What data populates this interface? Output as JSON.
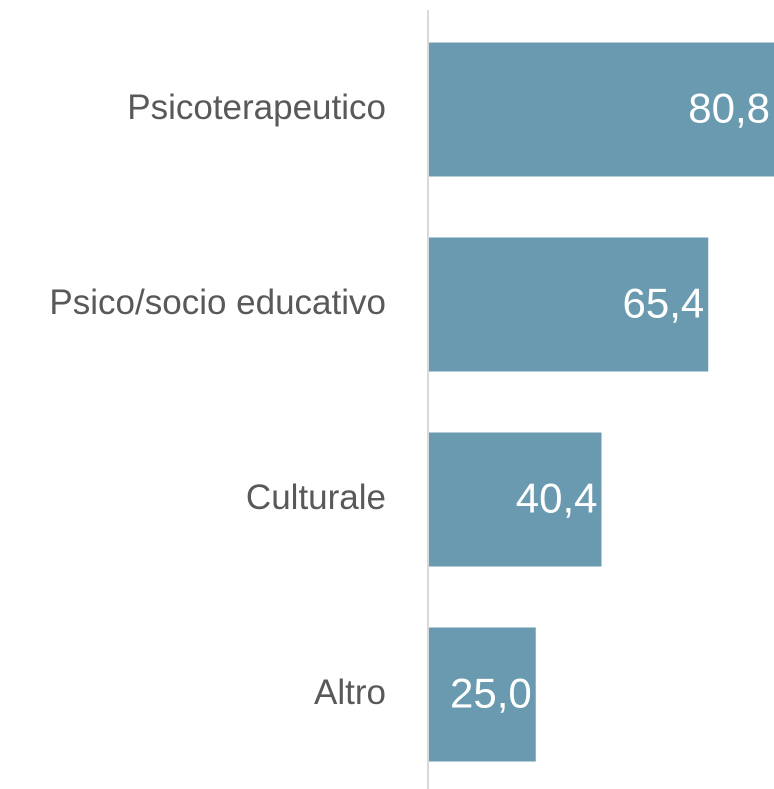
{
  "chart_data": {
    "type": "bar",
    "orientation": "horizontal",
    "categories": [
      "Psicoterapeutico",
      "Psico/socio educativo",
      "Culturale",
      "Altro"
    ],
    "values": [
      80.8,
      65.4,
      40.4,
      25.0
    ],
    "value_labels": [
      "80,8",
      "65,4",
      "40,4",
      "25,0"
    ],
    "color": "#6a9ab0"
  }
}
